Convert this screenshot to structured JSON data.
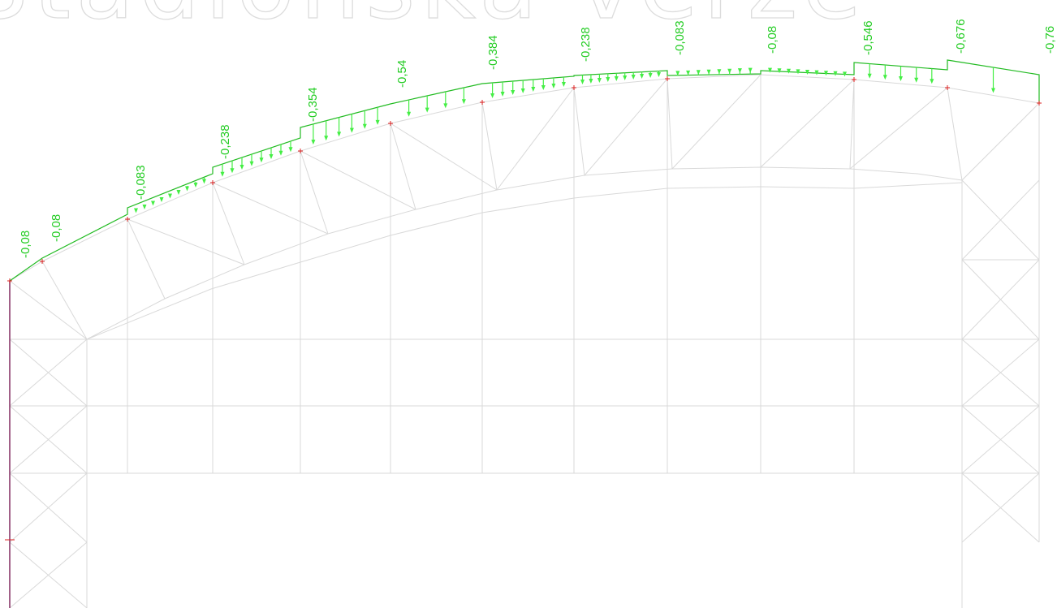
{
  "watermark": "Stadionska verze",
  "colors": {
    "load": "#22bb22",
    "arrow": "#44ee44",
    "mesh": "#d9d9d9",
    "node": "#dd2222",
    "column": "#8a3a6a"
  },
  "load_labels": [
    "-0,08",
    "-0,08",
    "-0,083",
    "-0,238",
    "-0,354",
    "-0,54",
    "-0,384",
    "-0,238",
    "-0,083",
    "-0,08",
    "-0,546",
    "-0,676",
    "-0,76"
  ]
}
